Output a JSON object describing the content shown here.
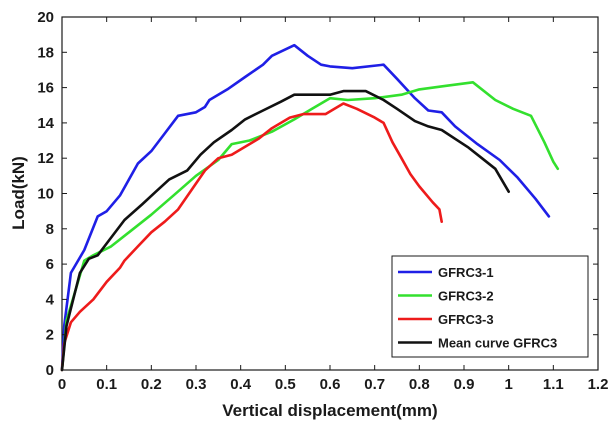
{
  "chart_data": {
    "type": "line",
    "title": "",
    "xlabel": "Vertical displacement(mm)",
    "ylabel": "Load(kN)",
    "xlim": [
      0,
      1.2
    ],
    "ylim": [
      0,
      20
    ],
    "xticks": [
      0,
      0.1,
      0.2,
      0.3,
      0.4,
      0.5,
      0.6,
      0.7,
      0.8,
      0.9,
      1,
      1.1,
      1.2
    ],
    "xtick_labels": [
      "0",
      "0.1",
      "0.2",
      "0.3",
      "0.4",
      "0.5",
      "0.6",
      "0.7",
      "0.8",
      "0.9",
      "1",
      "1.1",
      "1.2"
    ],
    "yticks": [
      0,
      2,
      4,
      6,
      8,
      10,
      12,
      14,
      16,
      18,
      20
    ],
    "ytick_labels": [
      "0",
      "2",
      "4",
      "6",
      "8",
      "10",
      "12",
      "14",
      "16",
      "18",
      "20"
    ],
    "grid": false,
    "legend_position": "bottom-right",
    "series": [
      {
        "name": "GFRC3-1",
        "color": "#1f1fe6",
        "points": [
          [
            0,
            0
          ],
          [
            0.005,
            2.5
          ],
          [
            0.02,
            5.5
          ],
          [
            0.05,
            6.8
          ],
          [
            0.08,
            8.7
          ],
          [
            0.1,
            9.0
          ],
          [
            0.13,
            9.9
          ],
          [
            0.17,
            11.7
          ],
          [
            0.2,
            12.4
          ],
          [
            0.23,
            13.4
          ],
          [
            0.26,
            14.4
          ],
          [
            0.3,
            14.6
          ],
          [
            0.32,
            14.9
          ],
          [
            0.33,
            15.3
          ],
          [
            0.37,
            15.9
          ],
          [
            0.41,
            16.6
          ],
          [
            0.45,
            17.3
          ],
          [
            0.47,
            17.8
          ],
          [
            0.52,
            18.4
          ],
          [
            0.55,
            17.8
          ],
          [
            0.58,
            17.3
          ],
          [
            0.6,
            17.2
          ],
          [
            0.65,
            17.1
          ],
          [
            0.72,
            17.3
          ],
          [
            0.75,
            16.5
          ],
          [
            0.79,
            15.4
          ],
          [
            0.82,
            14.7
          ],
          [
            0.85,
            14.6
          ],
          [
            0.88,
            13.8
          ],
          [
            0.93,
            12.8
          ],
          [
            0.98,
            11.9
          ],
          [
            1.02,
            10.9
          ],
          [
            1.06,
            9.7
          ],
          [
            1.09,
            8.7
          ]
        ]
      },
      {
        "name": "GFRC3-2",
        "color": "#33e02e",
        "points": [
          [
            0,
            0
          ],
          [
            0.01,
            2.8
          ],
          [
            0.03,
            4.5
          ],
          [
            0.05,
            6.2
          ],
          [
            0.07,
            6.5
          ],
          [
            0.11,
            7.0
          ],
          [
            0.15,
            7.8
          ],
          [
            0.2,
            8.8
          ],
          [
            0.25,
            9.9
          ],
          [
            0.3,
            11.0
          ],
          [
            0.35,
            11.9
          ],
          [
            0.38,
            12.8
          ],
          [
            0.42,
            13.0
          ],
          [
            0.47,
            13.5
          ],
          [
            0.52,
            14.2
          ],
          [
            0.56,
            14.8
          ],
          [
            0.6,
            15.4
          ],
          [
            0.64,
            15.3
          ],
          [
            0.7,
            15.4
          ],
          [
            0.76,
            15.6
          ],
          [
            0.8,
            15.9
          ],
          [
            0.86,
            16.1
          ],
          [
            0.92,
            16.3
          ],
          [
            0.97,
            15.3
          ],
          [
            1.01,
            14.8
          ],
          [
            1.05,
            14.4
          ],
          [
            1.08,
            12.9
          ],
          [
            1.1,
            11.8
          ],
          [
            1.11,
            11.4
          ]
        ]
      },
      {
        "name": "GFRC3-3",
        "color": "#ee1b1b",
        "points": [
          [
            0,
            0
          ],
          [
            0.005,
            1.5
          ],
          [
            0.02,
            2.7
          ],
          [
            0.04,
            3.3
          ],
          [
            0.07,
            4.0
          ],
          [
            0.1,
            5.0
          ],
          [
            0.13,
            5.8
          ],
          [
            0.14,
            6.2
          ],
          [
            0.17,
            7.0
          ],
          [
            0.2,
            7.8
          ],
          [
            0.23,
            8.4
          ],
          [
            0.26,
            9.1
          ],
          [
            0.29,
            10.2
          ],
          [
            0.32,
            11.3
          ],
          [
            0.35,
            12.0
          ],
          [
            0.38,
            12.2
          ],
          [
            0.4,
            12.5
          ],
          [
            0.44,
            13.1
          ],
          [
            0.47,
            13.7
          ],
          [
            0.51,
            14.3
          ],
          [
            0.54,
            14.5
          ],
          [
            0.59,
            14.5
          ],
          [
            0.61,
            14.8
          ],
          [
            0.63,
            15.1
          ],
          [
            0.66,
            14.8
          ],
          [
            0.7,
            14.3
          ],
          [
            0.72,
            14.0
          ],
          [
            0.74,
            12.9
          ],
          [
            0.76,
            12.0
          ],
          [
            0.78,
            11.1
          ],
          [
            0.8,
            10.4
          ],
          [
            0.83,
            9.5
          ],
          [
            0.845,
            9.1
          ],
          [
            0.85,
            8.4
          ]
        ]
      },
      {
        "name": "Mean curve GFRC3",
        "color": "#111111",
        "points": [
          [
            0,
            0
          ],
          [
            0.01,
            2.5
          ],
          [
            0.04,
            5.5
          ],
          [
            0.06,
            6.3
          ],
          [
            0.08,
            6.5
          ],
          [
            0.11,
            7.5
          ],
          [
            0.14,
            8.5
          ],
          [
            0.18,
            9.4
          ],
          [
            0.21,
            10.1
          ],
          [
            0.24,
            10.8
          ],
          [
            0.28,
            11.3
          ],
          [
            0.31,
            12.2
          ],
          [
            0.34,
            12.9
          ],
          [
            0.38,
            13.6
          ],
          [
            0.41,
            14.2
          ],
          [
            0.45,
            14.7
          ],
          [
            0.49,
            15.2
          ],
          [
            0.52,
            15.6
          ],
          [
            0.58,
            15.6
          ],
          [
            0.6,
            15.6
          ],
          [
            0.63,
            15.8
          ],
          [
            0.68,
            15.8
          ],
          [
            0.72,
            15.3
          ],
          [
            0.75,
            14.8
          ],
          [
            0.79,
            14.1
          ],
          [
            0.82,
            13.8
          ],
          [
            0.85,
            13.6
          ],
          [
            0.88,
            13.1
          ],
          [
            0.91,
            12.6
          ],
          [
            0.94,
            12.0
          ],
          [
            0.97,
            11.4
          ],
          [
            1,
            10.1
          ]
        ]
      }
    ]
  }
}
